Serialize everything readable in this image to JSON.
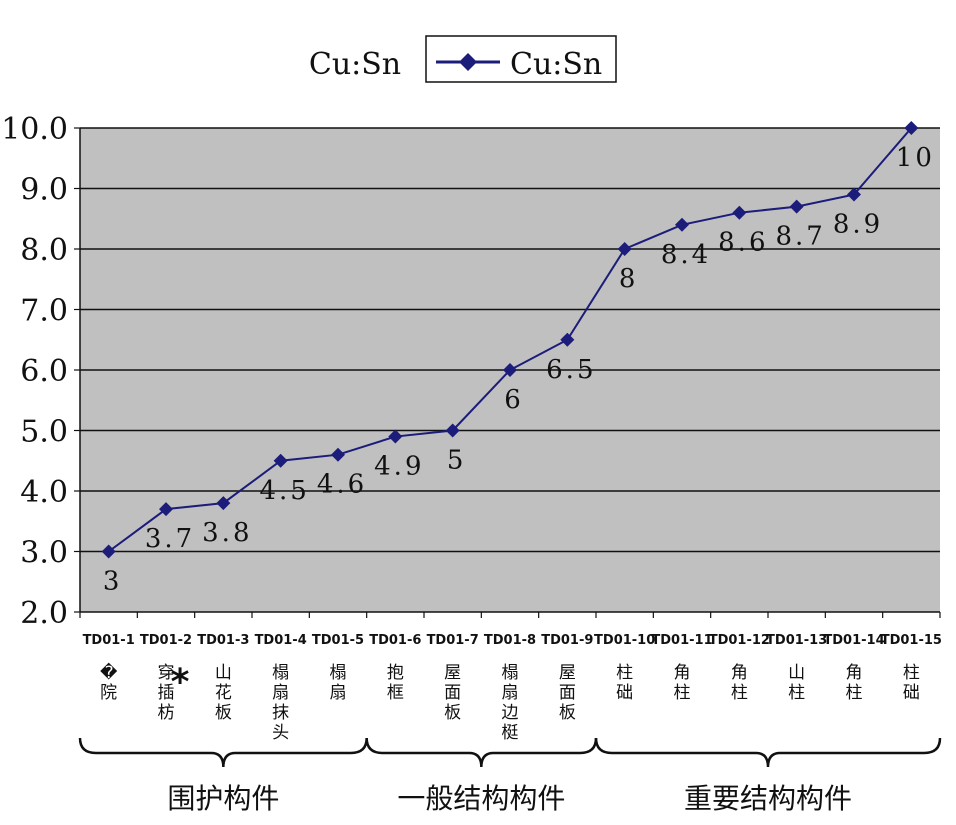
{
  "chart_data": {
    "type": "line",
    "legend_position": "top",
    "series": [
      {
        "name": "Cu:Sn",
        "color": "#1c1c7a",
        "values": [
          3,
          3.7,
          3.8,
          4.5,
          4.6,
          4.9,
          5,
          6,
          6.5,
          8,
          8.4,
          8.6,
          8.7,
          8.9,
          10
        ],
        "data_labels": [
          "3",
          "3.7",
          "3.8",
          "4.5",
          "4.6",
          "4.9",
          "5",
          "6",
          "6.5",
          "8",
          "8.4",
          "8.6",
          "8.7",
          "8.9",
          "10"
        ]
      }
    ],
    "categories": [
      "TD01-1",
      "TD01-2",
      "TD01-3",
      "TD01-4",
      "TD01-5",
      "TD01-6",
      "TD01-7",
      "TD01-8",
      "TD01-9",
      "TD01-10",
      "TD01-11",
      "TD01-12",
      "TD01-13",
      "TD01-14",
      "TD01-15"
    ],
    "category_names": [
      "�院",
      "穿插枋",
      "山花板",
      "榻扇抹头",
      "榻扇",
      "抱框",
      "屋面板",
      "榻扇边梃",
      "屋面板",
      "柱础",
      "角柱",
      "角柱",
      "山柱",
      "角柱",
      "柱础"
    ],
    "category_marks": [
      "",
      "*",
      "",
      "",
      "",
      "",
      "",
      "",
      "",
      "",
      "",
      "",
      "",
      "",
      ""
    ],
    "groups": [
      {
        "label": "围护构件",
        "from": 0,
        "to": 4
      },
      {
        "label": "一般结构构件",
        "from": 5,
        "to": 8
      },
      {
        "label": "重要结构构件",
        "from": 9,
        "to": 14
      }
    ],
    "yticks": [
      "2.0",
      "3.0",
      "4.0",
      "5.0",
      "6.0",
      "7.0",
      "8.0",
      "9.0",
      "10.0"
    ],
    "ylim": [
      2,
      10
    ],
    "grid": true,
    "plot_background": "#c0c0c0",
    "title": "",
    "xlabel": "",
    "ylabel": ""
  },
  "legend": {
    "outer_label": "Cu:Sn",
    "entry_label": "Cu:Sn"
  }
}
